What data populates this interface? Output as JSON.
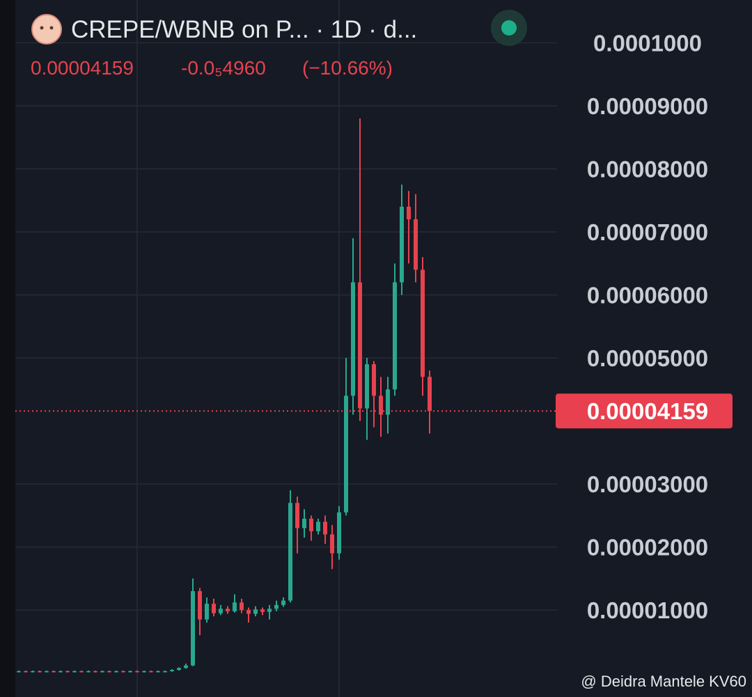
{
  "header": {
    "title": "CREPE/WBNB on P... · 1D · d...",
    "price": "0.00004159",
    "change": "-0.0₅4960",
    "change_percent": "(−10.66%)"
  },
  "watermark": "@ Deidra Mantele KV60",
  "chart_data": {
    "type": "candlestick",
    "up_color": "#2aa88f",
    "down_color": "#e5434f",
    "grid": true,
    "ylim": [
      -3.8e-06,
      0.0001068
    ],
    "yticks": [
      {
        "value": 0.0001,
        "label": "0.0001000"
      },
      {
        "value": 9e-05,
        "label": "0.00009000"
      },
      {
        "value": 8e-05,
        "label": "0.00008000"
      },
      {
        "value": 7e-05,
        "label": "0.00007000"
      },
      {
        "value": 6e-05,
        "label": "0.00006000"
      },
      {
        "value": 5e-05,
        "label": "0.00005000"
      },
      {
        "value": 3e-05,
        "label": "0.00003000"
      },
      {
        "value": 2e-05,
        "label": "0.00002000"
      },
      {
        "value": 1e-05,
        "label": "0.00001000"
      }
    ],
    "last_price": 4.159e-05,
    "open": [
      2e-07,
      3e-07,
      2e-07,
      3e-07,
      2e-07,
      3e-07,
      2e-07,
      3e-07,
      2e-07,
      3e-07,
      2e-07,
      3e-07,
      2e-07,
      3e-07,
      2e-07,
      3e-07,
      2e-07,
      3e-07,
      2e-07,
      3e-07,
      2e-07,
      3e-07,
      3e-07,
      5e-07,
      8e-07,
      1.2e-06,
      1.3e-05,
      8.5e-06,
      1.1e-05,
      9.5e-06,
      1.02e-05,
      9.8e-06,
      1.12e-05,
      1e-05,
      9.4e-06,
      1.01e-05,
      9.7e-06,
      1.02e-05,
      1.08e-05,
      1.15e-05,
      2.7e-05,
      2.3e-05,
      2.45e-05,
      2.25e-05,
      2.4e-05,
      2.2e-05,
      1.9e-05,
      2.55e-05,
      4.4e-05,
      6.2e-05,
      4.2e-05,
      4.9e-05,
      4.4e-05,
      4.1e-05,
      4.5e-05,
      6.2e-05,
      7.4e-05,
      7.2e-05,
      6.4e-05,
      4.7e-05
    ],
    "high": [
      4e-07,
      4e-07,
      4e-07,
      4e-07,
      4e-07,
      4e-07,
      4e-07,
      4e-07,
      4e-07,
      4e-07,
      4e-07,
      4e-07,
      4e-07,
      4e-07,
      4e-07,
      4e-07,
      4e-07,
      4e-07,
      4e-07,
      4e-07,
      4e-07,
      4e-07,
      6e-07,
      9e-07,
      1.5e-06,
      1.5e-05,
      1.35e-05,
      1.2e-05,
      1.18e-05,
      1.08e-05,
      1.06e-05,
      1.25e-05,
      1.18e-05,
      1.04e-05,
      1.06e-05,
      1.04e-05,
      1.08e-05,
      1.15e-05,
      1.2e-05,
      2.9e-05,
      2.8e-05,
      2.6e-05,
      2.5e-05,
      2.45e-05,
      2.5e-05,
      2.35e-05,
      2.65e-05,
      5e-05,
      6.9e-05,
      8.8e-05,
      5e-05,
      4.95e-05,
      4.7e-05,
      4.7e-05,
      6.5e-05,
      7.75e-05,
      7.65e-05,
      7.6e-05,
      6.6e-05,
      4.8e-05
    ],
    "low": [
      1e-07,
      1e-07,
      1e-07,
      1e-07,
      1e-07,
      1e-07,
      1e-07,
      1e-07,
      1e-07,
      1e-07,
      1e-07,
      1e-07,
      1e-07,
      1e-07,
      1e-07,
      1e-07,
      1e-07,
      1e-07,
      1e-07,
      1e-07,
      1e-07,
      1e-07,
      2e-07,
      4e-07,
      7e-07,
      1.1e-06,
      6e-06,
      8e-06,
      9e-06,
      9.2e-06,
      9.4e-06,
      9.6e-06,
      9.5e-06,
      8e-06,
      9e-06,
      9.2e-06,
      8.5e-06,
      9.8e-06,
      1.05e-05,
      1.12e-05,
      1.9e-05,
      2.15e-05,
      2.1e-05,
      2.2e-05,
      2.05e-05,
      1.65e-05,
      1.8e-05,
      2.5e-05,
      4.1e-05,
      4e-05,
      3.7e-05,
      3.9e-05,
      3.75e-05,
      3.8e-05,
      4.4e-05,
      6e-05,
      6.5e-05,
      6.2e-05,
      4.4e-05,
      3.8e-05
    ],
    "close": [
      3e-07,
      2e-07,
      3e-07,
      2e-07,
      3e-07,
      2e-07,
      3e-07,
      2e-07,
      3e-07,
      2e-07,
      3e-07,
      2e-07,
      3e-07,
      2e-07,
      3e-07,
      2e-07,
      3e-07,
      2e-07,
      3e-07,
      2e-07,
      3e-07,
      3e-07,
      5e-07,
      8e-07,
      1.2e-06,
      1.3e-05,
      8.5e-06,
      1.1e-05,
      9.5e-06,
      1.02e-05,
      9.8e-06,
      1.12e-05,
      1e-05,
      9.4e-06,
      1.01e-05,
      9.7e-06,
      1.02e-05,
      1.08e-05,
      1.15e-05,
      2.7e-05,
      2.3e-05,
      2.45e-05,
      2.25e-05,
      2.4e-05,
      2.2e-05,
      1.9e-05,
      2.55e-05,
      4.4e-05,
      6.2e-05,
      4.2e-05,
      4.9e-05,
      4.4e-05,
      4.1e-05,
      4.5e-05,
      6.2e-05,
      7.4e-05,
      7.2e-05,
      6.4e-05,
      4.7e-05,
      4.159e-05
    ]
  }
}
